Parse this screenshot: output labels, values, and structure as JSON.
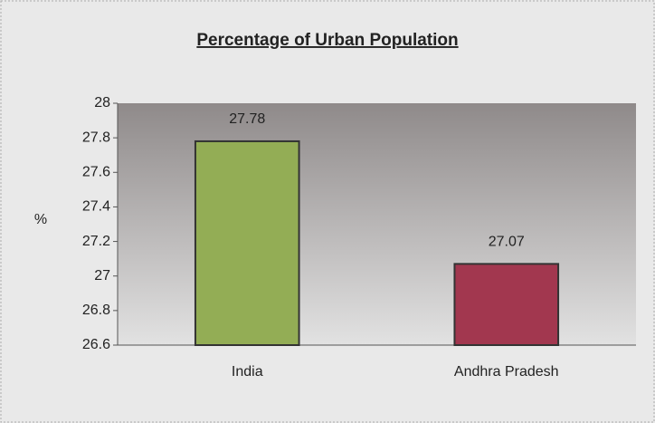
{
  "chart_data": {
    "type": "bar",
    "title": "Percentage of Urban Population",
    "y_label": "%",
    "categories": [
      "India",
      "Andhra Pradesh"
    ],
    "values": [
      27.78,
      27.07
    ],
    "colors": [
      "#93ad55",
      "#a2374f"
    ],
    "ylim": [
      26.6,
      28
    ],
    "yticks": [
      26.6,
      26.8,
      27,
      27.2,
      27.4,
      27.6,
      27.8,
      28
    ]
  }
}
